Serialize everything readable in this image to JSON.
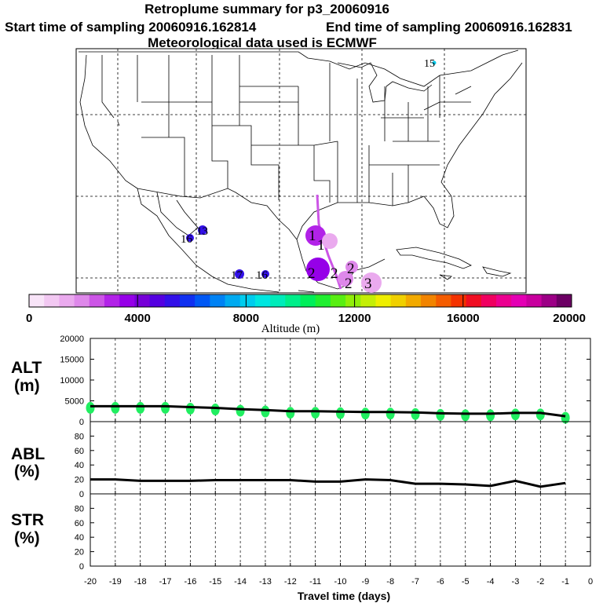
{
  "header": {
    "title": "Retroplume summary for p3_20060916",
    "start": "Start time of sampling 20060916.162814",
    "end": "End time of sampling 20060916.162831",
    "met": "Meteorological data used is ECMWF"
  },
  "colorbar": {
    "label": "Altitude (m)",
    "ticks": [
      "0",
      "4000",
      "8000",
      "12000",
      "16000",
      "20000"
    ],
    "colors": [
      "#f8e4f8",
      "#f2c8f2",
      "#eaaaee",
      "#de88ea",
      "#cc55e6",
      "#b222e8",
      "#9600e8",
      "#7600d8",
      "#5400e0",
      "#3210e8",
      "#1030f0",
      "#0058f4",
      "#0082f4",
      "#00aaf0",
      "#00ccee",
      "#00e6e0",
      "#00ecba",
      "#00ee8a",
      "#00ee5a",
      "#20ee30",
      "#58ee12",
      "#90ee08",
      "#c4ee06",
      "#eeee00",
      "#f0d000",
      "#f2aa00",
      "#f28400",
      "#f45c00",
      "#f43200",
      "#f00e22",
      "#f00060",
      "#ec0090",
      "#e400b4",
      "#c8009e",
      "#9c0086",
      "#6c0064"
    ]
  },
  "map": {
    "markers": [
      "1",
      "1",
      "2",
      "2",
      "2",
      "2",
      "3",
      "13",
      "16",
      "16",
      "17",
      "15"
    ],
    "marker_colors": {
      "day1_2": "#cc55e6",
      "day2_3": "#de88ea",
      "day3": "#eaaaee",
      "day13_16": "#3210e8",
      "day15": "#00ccee"
    }
  },
  "chart_data": [
    {
      "type": "line",
      "panel": "ALT",
      "ylabel": "ALT (m)",
      "ylim": [
        0,
        20000
      ],
      "yticks": [
        0,
        5000,
        10000,
        15000,
        20000
      ],
      "x": [
        -20,
        -19,
        -18,
        -17,
        -16,
        -15,
        -14,
        -13,
        -12,
        -11,
        -10,
        -9,
        -8,
        -7,
        -6,
        -5,
        -4,
        -3,
        -2,
        -1
      ],
      "values": [
        3700,
        3700,
        3700,
        3700,
        3500,
        3300,
        3000,
        2800,
        2500,
        2500,
        2400,
        2300,
        2300,
        2200,
        2000,
        1900,
        1900,
        2100,
        2100,
        1300
      ],
      "scatter_color": "#20ee60"
    },
    {
      "type": "line",
      "panel": "ABL",
      "ylabel": "ABL (%)",
      "ylim": [
        0,
        100
      ],
      "yticks": [
        0,
        20,
        40,
        60,
        80
      ],
      "x": [
        -20,
        -19,
        -18,
        -17,
        -16,
        -15,
        -14,
        -13,
        -12,
        -11,
        -10,
        -9,
        -8,
        -7,
        -6,
        -5,
        -4,
        -3,
        -2,
        -1
      ],
      "values": [
        20,
        20,
        18,
        18,
        18,
        19,
        19,
        19,
        19,
        17,
        17,
        20,
        19,
        14,
        14,
        13,
        11,
        18,
        10,
        15
      ]
    },
    {
      "type": "line",
      "panel": "STR",
      "ylabel": "STR (%)",
      "ylim": [
        0,
        100
      ],
      "yticks": [
        0,
        20,
        40,
        60,
        80
      ],
      "x": [],
      "values": []
    }
  ],
  "xaxis": {
    "label": "Travel time (days)",
    "ticks": [
      "-20",
      "-19",
      "-18",
      "-17",
      "-16",
      "-15",
      "-14",
      "-13",
      "-12",
      "-11",
      "-10",
      "-9",
      "-8",
      "-7",
      "-6",
      "-5",
      "-4",
      "-3",
      "-2",
      "-1",
      "0"
    ]
  }
}
